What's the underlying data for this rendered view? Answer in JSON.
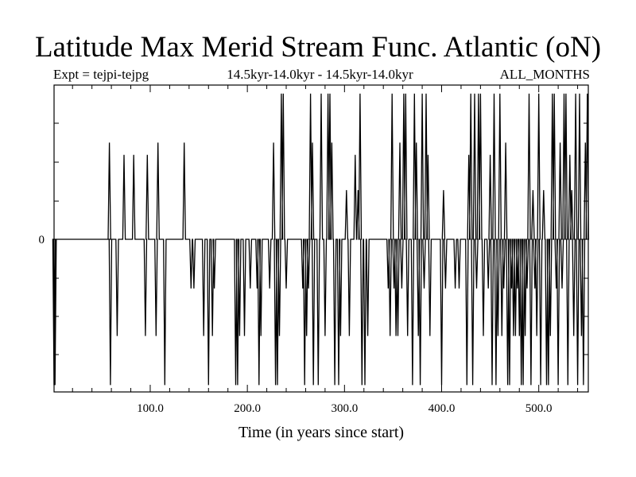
{
  "title": "Latitude Max Merid Stream Func. Atlantic (oN)",
  "subtitle_left": "Expt = tejpi-tejpg",
  "subtitle_center": "14.5kyr-14.0kyr - 14.5kyr-14.0kyr",
  "subtitle_right": "ALL_MONTHS",
  "chart_data": {
    "type": "line",
    "xlabel": "Time (in years since start)",
    "ylabel": "",
    "xlim": [
      1,
      551
    ],
    "ylim": [
      -1.0,
      1.0
    ],
    "x_ticks": [
      100,
      200,
      300,
      400,
      500
    ],
    "x_tick_labels": [
      "100.0",
      "200.0",
      "300.0",
      "400.0",
      "500.0"
    ],
    "y_ticks": [
      0
    ],
    "y_tick_labels": [
      "0"
    ],
    "grid": false,
    "series": [
      {
        "name": "",
        "events": [
          [
            1,
            -0.95
          ],
          [
            2,
            -0.95
          ],
          [
            58,
            0.63
          ],
          [
            59,
            -0.95
          ],
          [
            66,
            -0.63
          ],
          [
            73,
            0.55
          ],
          [
            83,
            0.55
          ],
          [
            95,
            -0.63
          ],
          [
            97,
            0.55
          ],
          [
            106,
            -0.63
          ],
          [
            108,
            0.63
          ],
          [
            115,
            -0.95
          ],
          [
            135,
            0.63
          ],
          [
            142,
            -0.32
          ],
          [
            145,
            -0.32
          ],
          [
            155,
            -0.63
          ],
          [
            160,
            -0.95
          ],
          [
            164,
            -0.63
          ],
          [
            166,
            -0.32
          ],
          [
            188,
            -0.95
          ],
          [
            190,
            -0.95
          ],
          [
            192,
            -0.63
          ],
          [
            197,
            -0.63
          ],
          [
            203,
            -0.32
          ],
          [
            210,
            -0.32
          ],
          [
            212,
            -0.95
          ],
          [
            214,
            -0.63
          ],
          [
            223,
            -0.32
          ],
          [
            227,
            0.63
          ],
          [
            229,
            -0.95
          ],
          [
            231,
            -0.95
          ],
          [
            233,
            -0.63
          ],
          [
            235,
            0.95
          ],
          [
            237,
            0.95
          ],
          [
            240,
            -0.32
          ],
          [
            257,
            -0.32
          ],
          [
            259,
            -0.95
          ],
          [
            261,
            -0.63
          ],
          [
            263,
            -0.32
          ],
          [
            265,
            0.95
          ],
          [
            267,
            0.63
          ],
          [
            268,
            -0.95
          ],
          [
            273,
            -0.95
          ],
          [
            276,
            0.95
          ],
          [
            280,
            -0.63
          ],
          [
            283,
            0.95
          ],
          [
            285,
            0.95
          ],
          [
            287,
            0.63
          ],
          [
            290,
            -0.95
          ],
          [
            294,
            -0.95
          ],
          [
            296,
            -0.63
          ],
          [
            302,
            0.32
          ],
          [
            305,
            -0.63
          ],
          [
            311,
            0.55
          ],
          [
            314,
            0.32
          ],
          [
            316,
            0.95
          ],
          [
            318,
            -0.95
          ],
          [
            321,
            -0.95
          ],
          [
            324,
            -0.63
          ],
          [
            345,
            -0.32
          ],
          [
            347,
            -0.63
          ],
          [
            349,
            0.95
          ],
          [
            351,
            -0.32
          ],
          [
            353,
            -0.63
          ],
          [
            355,
            -0.63
          ],
          [
            357,
            0.63
          ],
          [
            359,
            -0.32
          ],
          [
            361,
            0.95
          ],
          [
            363,
            0.95
          ],
          [
            365,
            -0.63
          ],
          [
            370,
            -0.95
          ],
          [
            372,
            0.95
          ],
          [
            374,
            0.63
          ],
          [
            376,
            -0.63
          ],
          [
            378,
            -0.95
          ],
          [
            380,
            0.95
          ],
          [
            382,
            -0.32
          ],
          [
            384,
            0.95
          ],
          [
            386,
            0.55
          ],
          [
            388,
            -0.63
          ],
          [
            400,
            -0.95
          ],
          [
            402,
            0.32
          ],
          [
            404,
            -0.32
          ],
          [
            414,
            -0.32
          ],
          [
            418,
            -0.32
          ],
          [
            426,
            -0.95
          ],
          [
            428,
            0.55
          ],
          [
            430,
            0.95
          ],
          [
            432,
            -0.95
          ],
          [
            434,
            0.95
          ],
          [
            436,
            -0.32
          ],
          [
            438,
            0.95
          ],
          [
            440,
            0.95
          ],
          [
            443,
            -0.63
          ],
          [
            448,
            -0.32
          ],
          [
            450,
            0.55
          ],
          [
            452,
            -0.95
          ],
          [
            454,
            0.95
          ],
          [
            456,
            -0.95
          ],
          [
            458,
            -0.63
          ],
          [
            460,
            0.95
          ],
          [
            462,
            -0.63
          ],
          [
            464,
            -0.32
          ],
          [
            466,
            0.63
          ],
          [
            468,
            -0.95
          ],
          [
            470,
            -0.95
          ],
          [
            472,
            -0.32
          ],
          [
            474,
            -0.63
          ],
          [
            476,
            -0.63
          ],
          [
            478,
            -0.32
          ],
          [
            480,
            -0.63
          ],
          [
            482,
            -0.95
          ],
          [
            484,
            -0.95
          ],
          [
            486,
            -0.63
          ],
          [
            488,
            -0.32
          ],
          [
            490,
            0.95
          ],
          [
            492,
            -0.95
          ],
          [
            494,
            0.32
          ],
          [
            496,
            -0.32
          ],
          [
            498,
            -0.63
          ],
          [
            500,
            0.95
          ],
          [
            502,
            -0.95
          ],
          [
            505,
            0.32
          ],
          [
            508,
            -0.95
          ],
          [
            510,
            -0.95
          ],
          [
            512,
            -0.63
          ],
          [
            514,
            0.95
          ],
          [
            516,
            0.95
          ],
          [
            518,
            -0.32
          ],
          [
            520,
            -0.95
          ],
          [
            522,
            0.63
          ],
          [
            524,
            -0.32
          ],
          [
            526,
            0.95
          ],
          [
            528,
            0.95
          ],
          [
            530,
            -0.95
          ],
          [
            532,
            0.55
          ],
          [
            534,
            0.32
          ],
          [
            536,
            -0.63
          ],
          [
            538,
            0.95
          ],
          [
            540,
            -0.95
          ],
          [
            542,
            0.95
          ],
          [
            544,
            -0.63
          ],
          [
            546,
            -0.95
          ],
          [
            548,
            0.63
          ],
          [
            550,
            0.95
          ]
        ]
      }
    ]
  }
}
